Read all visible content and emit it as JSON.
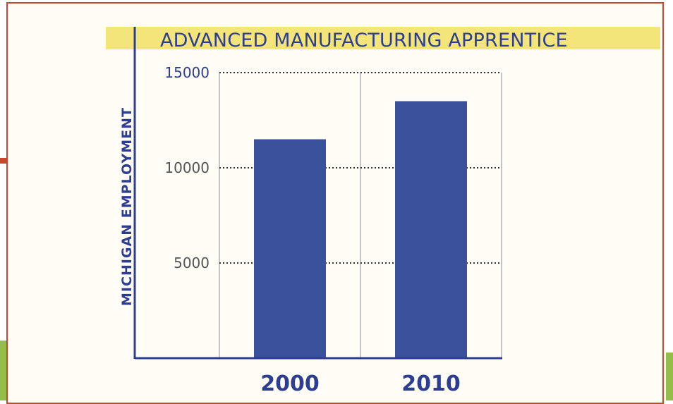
{
  "chart_data": {
    "type": "bar",
    "title": "ADVANCED MANUFACTURING APPRENTICE",
    "xlabel": "",
    "ylabel": "MICHIGAN EMPLOYMENT",
    "categories": [
      "2000",
      "2010"
    ],
    "values": [
      11500,
      13500
    ],
    "ylim": [
      0,
      15000
    ],
    "yticks": [
      5000,
      10000,
      15000
    ],
    "ytick_labels": [
      "5000",
      "10000",
      "15000"
    ],
    "grid": true,
    "legend": "none"
  },
  "colors": {
    "bar": "#3a519b",
    "title_band": "#f4e57a",
    "frame": "#c9482b",
    "text": "#2d3e90",
    "accent_green": "#94bd4a"
  }
}
